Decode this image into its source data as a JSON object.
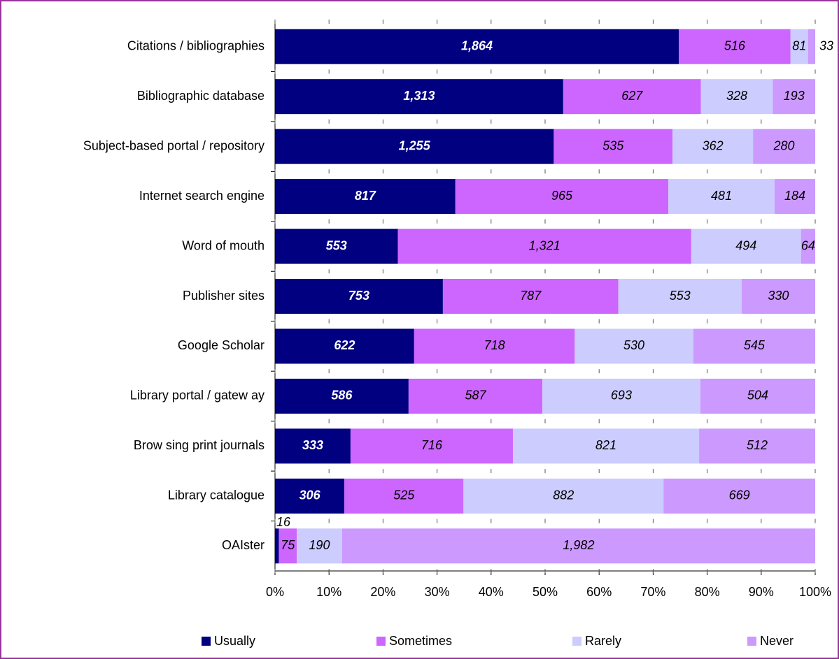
{
  "chart_data": {
    "type": "bar",
    "orientation": "horizontal",
    "stacked": "percent",
    "categories": [
      "Citations / bibliographies",
      "Bibliographic database",
      "Subject-based portal / repository",
      "Internet search engine",
      "Word of mouth",
      "Publisher sites",
      "Google Scholar",
      "Library portal / gatew ay",
      "Brow sing print journals",
      "Library catalogue",
      "OAIster"
    ],
    "series": [
      {
        "name": "Usually",
        "color": "#000080",
        "values": [
          1864,
          1313,
          1255,
          817,
          553,
          753,
          622,
          586,
          333,
          306,
          16
        ],
        "value_labels": [
          "1,864",
          "1,313",
          "1,255",
          "817",
          "553",
          "753",
          "622",
          "586",
          "333",
          "306",
          "16"
        ]
      },
      {
        "name": "Sometimes",
        "color": "#cc66ff",
        "values": [
          516,
          627,
          535,
          965,
          1321,
          787,
          718,
          587,
          716,
          525,
          75
        ],
        "value_labels": [
          "516",
          "627",
          "535",
          "965",
          "1,321",
          "787",
          "718",
          "587",
          "716",
          "525",
          "75"
        ]
      },
      {
        "name": "Rarely",
        "color": "#ccccff",
        "values": [
          81,
          328,
          362,
          481,
          494,
          553,
          530,
          693,
          821,
          882,
          190
        ],
        "value_labels": [
          "81",
          "328",
          "362",
          "481",
          "494",
          "553",
          "530",
          "693",
          "821",
          "882",
          "190"
        ]
      },
      {
        "name": "Never",
        "color": "#cc99ff",
        "values": [
          33,
          193,
          280,
          184,
          64,
          330,
          545,
          504,
          512,
          669,
          1982
        ],
        "value_labels": [
          "33",
          "193",
          "280",
          "184",
          "64",
          "330",
          "545",
          "504",
          "512",
          "669",
          "1,982"
        ]
      }
    ],
    "xlim": [
      0,
      100
    ],
    "xticks": [
      {
        "value": 0,
        "label": "0%"
      },
      {
        "value": 10,
        "label": "10%"
      },
      {
        "value": 20,
        "label": "20%"
      },
      {
        "value": 30,
        "label": "30%"
      },
      {
        "value": 40,
        "label": "40%"
      },
      {
        "value": 50,
        "label": "50%"
      },
      {
        "value": 60,
        "label": "60%"
      },
      {
        "value": 70,
        "label": "70%"
      },
      {
        "value": 80,
        "label": "80%"
      },
      {
        "value": 90,
        "label": "90%"
      },
      {
        "value": 100,
        "label": "100%"
      }
    ],
    "legend": "bottom"
  }
}
